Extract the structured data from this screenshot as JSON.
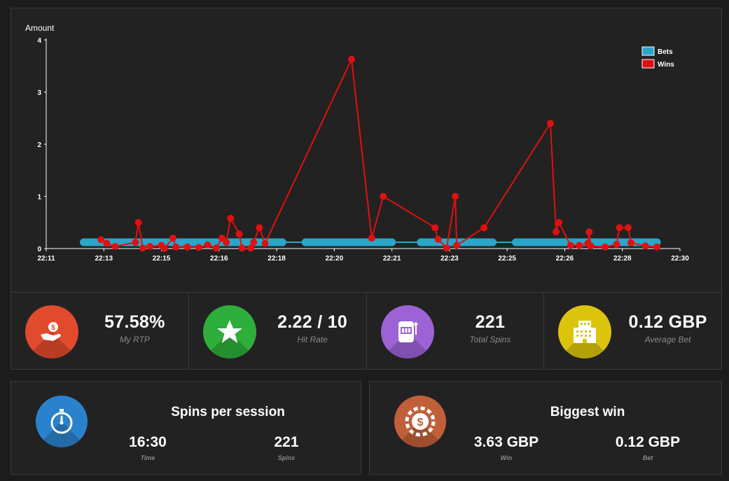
{
  "chart_data": {
    "type": "line",
    "ylabel": "Amount",
    "ylim": [
      0,
      4
    ],
    "yticks": [
      "0",
      "1",
      "2",
      "3",
      "4"
    ],
    "xtick_labels": [
      "22:11",
      "22:13",
      "22:15",
      "22:16",
      "22:18",
      "22:20",
      "22:21",
      "22:23",
      "22:25",
      "22:26",
      "22:28",
      "22:30"
    ],
    "xrange_minutes": [
      0,
      22
    ],
    "legend_position": "top-right",
    "series": [
      {
        "name": "Bets",
        "color": "#2aa6c8",
        "segments": [
          [
            1.3,
            8.2
          ],
          [
            9.0,
            12.0
          ],
          [
            13.0,
            15.5
          ],
          [
            16.3,
            21.2
          ]
        ],
        "value": 0.12
      },
      {
        "name": "Wins",
        "color": "#e01010",
        "points": [
          [
            1.9,
            0.17
          ],
          [
            2.1,
            0.1
          ],
          [
            2.4,
            0.04
          ],
          [
            3.1,
            0.12
          ],
          [
            3.2,
            0.5
          ],
          [
            3.35,
            0.01
          ],
          [
            3.6,
            0.04
          ],
          [
            4.0,
            0.06
          ],
          [
            4.1,
            0.0
          ],
          [
            4.4,
            0.2
          ],
          [
            4.5,
            0.03
          ],
          [
            4.9,
            0.03
          ],
          [
            5.3,
            0.02
          ],
          [
            5.6,
            0.07
          ],
          [
            5.9,
            0.01
          ],
          [
            6.1,
            0.2
          ],
          [
            6.25,
            0.12
          ],
          [
            6.4,
            0.58
          ],
          [
            6.7,
            0.28
          ],
          [
            6.8,
            0.01
          ],
          [
            7.1,
            0.01
          ],
          [
            7.2,
            0.12
          ],
          [
            7.4,
            0.4
          ],
          [
            7.6,
            0.1
          ],
          [
            10.6,
            3.63
          ],
          [
            11.3,
            0.2
          ],
          [
            11.7,
            1.0
          ],
          [
            13.5,
            0.4
          ],
          [
            13.6,
            0.18
          ],
          [
            13.9,
            0.01
          ],
          [
            14.2,
            1.0
          ],
          [
            14.25,
            0.06
          ],
          [
            15.2,
            0.4
          ],
          [
            17.5,
            2.4
          ],
          [
            17.7,
            0.32
          ],
          [
            17.8,
            0.5
          ],
          [
            18.2,
            0.06
          ],
          [
            18.5,
            0.06
          ],
          [
            18.8,
            0.1
          ],
          [
            18.85,
            0.32
          ],
          [
            18.9,
            0.05
          ],
          [
            19.4,
            0.03
          ],
          [
            19.8,
            0.08
          ],
          [
            19.9,
            0.4
          ],
          [
            20.2,
            0.4
          ],
          [
            20.3,
            0.11
          ],
          [
            20.8,
            0.05
          ],
          [
            21.2,
            0.03
          ]
        ]
      }
    ]
  },
  "stats": [
    {
      "value": "57.58%",
      "label": "My RTP",
      "color": "#e24a2e",
      "icon": "hand-coin-icon"
    },
    {
      "value": "2.22 / 10",
      "label": "Hit Rate",
      "color": "#2eae3a",
      "icon": "star-icon"
    },
    {
      "value": "221",
      "label": "Total Spins",
      "color": "#9d62d6",
      "icon": "slot-machine-icon"
    },
    {
      "value": "0.12 GBP",
      "label": "Average Bet",
      "color": "#dcc40c",
      "icon": "building-icon"
    }
  ],
  "session": {
    "title": "Spins per session",
    "color": "#2b82cc",
    "icon": "stopwatch-icon",
    "time_value": "16:30",
    "time_label": "Time",
    "spins_value": "221",
    "spins_label": "Spins"
  },
  "biggest": {
    "title": "Biggest win",
    "color": "#c0603a",
    "icon": "casino-chip-icon",
    "win_value": "3.63 GBP",
    "win_label": "Win",
    "bet_value": "0.12 GBP",
    "bet_label": "Bet"
  }
}
